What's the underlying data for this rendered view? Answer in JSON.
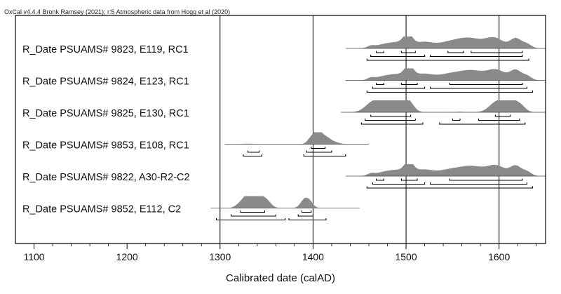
{
  "header": "OxCal v4.4.4 Bronk Ramsey (2021); r:5 Atmospheric data from Hogg et al (2020)",
  "chart_data": {
    "type": "multiplot",
    "xlabel": "Calibrated date (calAD)",
    "xlim": [
      1080,
      1650
    ],
    "xticks": [
      1100,
      1200,
      1300,
      1400,
      1500,
      1600
    ],
    "grid_x": [
      1300,
      1400,
      1500,
      1600
    ],
    "items": [
      {
        "label": "R_Date PSUAMS# 9823, E119, RC1",
        "range": [
          1435,
          1650
        ],
        "peaks": [
          [
            1462,
            0.18,
            4
          ],
          [
            1475,
            0.3,
            8
          ],
          [
            1490,
            0.45,
            8
          ],
          [
            1502,
            1.0,
            5
          ],
          [
            1518,
            0.5,
            10
          ],
          [
            1548,
            0.55,
            14
          ],
          [
            1570,
            0.7,
            12
          ],
          [
            1595,
            0.85,
            10
          ],
          [
            1618,
            0.8,
            6
          ],
          [
            1630,
            0.35,
            5
          ]
        ],
        "hpd1": [
          [
            1468,
            1476
          ],
          [
            1495,
            1510
          ],
          [
            1545,
            1562
          ],
          [
            1570,
            1625
          ]
        ],
        "hpd2": [
          [
            1462,
            1520
          ],
          [
            1526,
            1625
          ]
        ],
        "hpd3": [
          [
            1458,
            1632
          ]
        ]
      },
      {
        "label": "R_Date PSUAMS# 9824, E123, RC1",
        "range": [
          1435,
          1650
        ],
        "peaks": [
          [
            1462,
            0.18,
            4
          ],
          [
            1475,
            0.3,
            8
          ],
          [
            1490,
            0.45,
            8
          ],
          [
            1503,
            1.0,
            5
          ],
          [
            1518,
            0.5,
            10
          ],
          [
            1548,
            0.55,
            14
          ],
          [
            1572,
            0.7,
            12
          ],
          [
            1597,
            0.85,
            10
          ],
          [
            1618,
            0.8,
            6
          ],
          [
            1630,
            0.35,
            5
          ]
        ],
        "hpd1": [
          [
            1468,
            1476
          ],
          [
            1495,
            1512
          ],
          [
            1547,
            1625
          ]
        ],
        "hpd2": [
          [
            1464,
            1520
          ],
          [
            1526,
            1630
          ]
        ],
        "hpd3": [
          [
            1458,
            1636
          ]
        ]
      },
      {
        "label": "R_Date PSUAMS# 9825, E130, RC1",
        "range": [
          1430,
          1650
        ],
        "peaks": [
          [
            1464,
            0.75,
            8
          ],
          [
            1480,
            0.8,
            10
          ],
          [
            1495,
            0.95,
            8
          ],
          [
            1504,
            0.45,
            5
          ],
          [
            1558,
            0.04,
            6
          ],
          [
            1598,
            0.9,
            8
          ],
          [
            1613,
            1.0,
            7
          ],
          [
            1624,
            0.4,
            5
          ]
        ],
        "hpd1": [
          [
            1462,
            1505
          ],
          [
            1596,
            1612
          ]
        ],
        "hpd2": [
          [
            1456,
            1510
          ],
          [
            1550,
            1558
          ],
          [
            1578,
            1622
          ]
        ],
        "hpd3": [
          [
            1452,
            1518
          ],
          [
            1536,
            1628
          ]
        ]
      },
      {
        "label": "R_Date PSUAMS# 9853, E108, RC1",
        "range": [
          1305,
          1460
        ],
        "peaks": [
          [
            1330,
            0.05,
            5
          ],
          [
            1398,
            0.5,
            4
          ],
          [
            1405,
            1.0,
            4
          ],
          [
            1413,
            0.55,
            5
          ],
          [
            1422,
            0.18,
            6
          ]
        ],
        "hpd1": [
          [
            1398,
            1413
          ]
        ],
        "hpd2": [
          [
            1330,
            1342
          ],
          [
            1393,
            1420
          ]
        ],
        "hpd3": [
          [
            1325,
            1345
          ],
          [
            1390,
            1435
          ]
        ]
      },
      {
        "label": "R_Date PSUAMS# 9822, A30-R2-C2",
        "range": [
          1435,
          1650
        ],
        "peaks": [
          [
            1462,
            0.18,
            4
          ],
          [
            1475,
            0.3,
            8
          ],
          [
            1490,
            0.45,
            8
          ],
          [
            1503,
            1.0,
            5
          ],
          [
            1518,
            0.5,
            10
          ],
          [
            1548,
            0.55,
            14
          ],
          [
            1572,
            0.7,
            12
          ],
          [
            1597,
            0.85,
            10
          ],
          [
            1618,
            0.8,
            6
          ],
          [
            1630,
            0.35,
            5
          ]
        ],
        "hpd1": [
          [
            1468,
            1476
          ],
          [
            1495,
            1512
          ],
          [
            1547,
            1625
          ]
        ],
        "hpd2": [
          [
            1464,
            1520
          ],
          [
            1526,
            1630
          ]
        ],
        "hpd3": [
          [
            1458,
            1636
          ]
        ]
      },
      {
        "label": "R_Date PSUAMS# 9852, E112, C2",
        "range": [
          1290,
          1450
        ],
        "peaks": [
          [
            1322,
            0.35,
            5
          ],
          [
            1330,
            0.9,
            5
          ],
          [
            1340,
            1.0,
            6
          ],
          [
            1350,
            0.55,
            5
          ],
          [
            1390,
            0.6,
            4
          ],
          [
            1396,
            0.55,
            4
          ]
        ],
        "hpd1": [
          [
            1322,
            1348
          ],
          [
            1388,
            1398
          ]
        ],
        "hpd2": [
          [
            1312,
            1360
          ],
          [
            1384,
            1400
          ]
        ],
        "hpd3": [
          [
            1296,
            1370
          ],
          [
            1374,
            1414
          ]
        ]
      }
    ]
  }
}
